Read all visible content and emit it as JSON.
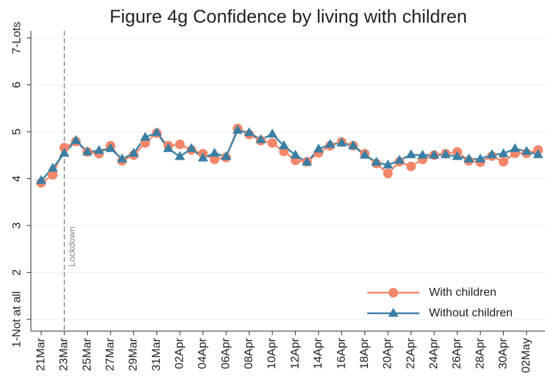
{
  "chart_data": {
    "type": "line",
    "title": "Figure 4g Confidence by living with children",
    "categories": [
      "21Mar",
      null,
      "23Mar",
      null,
      "25Mar",
      null,
      "27Mar",
      null,
      "29Mar",
      null,
      "31Mar",
      null,
      "02Apr",
      null,
      "04Apr",
      null,
      "06Apr",
      null,
      "08Apr",
      null,
      "10Apr",
      null,
      "12Apr",
      null,
      "14Apr",
      null,
      "16Apr",
      null,
      "18Apr",
      null,
      "20Apr",
      null,
      "22Apr",
      null,
      "24Apr",
      null,
      "26Apr",
      null,
      "28Apr",
      null,
      "30Apr",
      null,
      "02May",
      null
    ],
    "series": [
      {
        "name": "With children",
        "color": "#f2866b",
        "marker": "circle",
        "values": [
          3.91,
          4.08,
          4.66,
          4.79,
          4.57,
          4.53,
          4.7,
          4.38,
          4.5,
          4.76,
          4.97,
          4.7,
          4.73,
          4.61,
          4.53,
          4.41,
          4.45,
          5.07,
          4.94,
          4.81,
          4.76,
          4.58,
          4.39,
          4.36,
          4.55,
          4.7,
          4.78,
          4.7,
          4.53,
          4.32,
          4.11,
          4.36,
          4.26,
          4.41,
          4.5,
          4.53,
          4.57,
          4.38,
          4.35,
          4.48,
          4.36,
          4.54,
          4.54,
          4.61
        ]
      },
      {
        "name": "Without children",
        "color": "#3a7fa3",
        "marker": "triangle",
        "values": [
          3.96,
          4.22,
          4.54,
          4.81,
          4.57,
          4.6,
          4.64,
          4.42,
          4.54,
          4.88,
          4.98,
          4.64,
          4.47,
          4.64,
          4.44,
          4.54,
          4.47,
          5.03,
          4.98,
          4.83,
          4.95,
          4.7,
          4.5,
          4.35,
          4.63,
          4.73,
          4.76,
          4.7,
          4.5,
          4.35,
          4.29,
          4.39,
          4.51,
          4.5,
          4.5,
          4.51,
          4.47,
          4.42,
          4.42,
          4.51,
          4.53,
          4.64,
          4.58,
          4.51
        ]
      }
    ],
    "ylim": [
      0.75,
      7.15
    ],
    "yticks": [
      {
        "value": 1,
        "label": "1-Not at all"
      },
      2,
      3,
      4,
      5,
      6,
      {
        "value": 7,
        "label": "7-Lots"
      }
    ],
    "grid": true,
    "legend": "lower right",
    "vline": {
      "category_index": 2,
      "label": "Lockdown",
      "color": "#888"
    }
  }
}
